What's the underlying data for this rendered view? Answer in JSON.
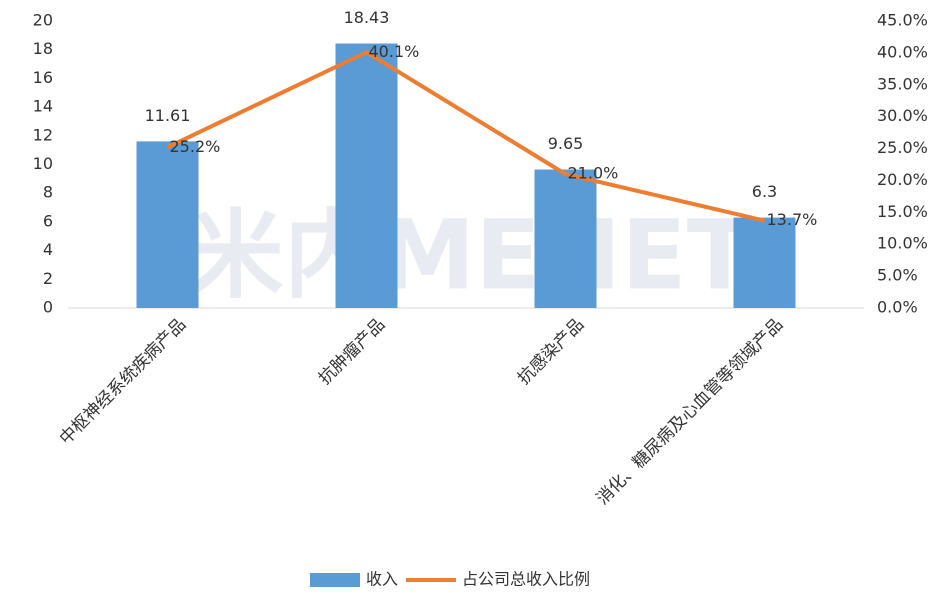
{
  "chart_data": {
    "type": "bar",
    "watermark": "米内MENET",
    "categories": [
      "中枢神经系统疾病产品",
      "抗肿瘤产品",
      "抗感染产品",
      "消化、糖尿病及心血管等领域产品"
    ],
    "series": [
      {
        "name": "收入",
        "type": "bar",
        "color": "#5b9bd5",
        "values": [
          11.61,
          18.43,
          9.65,
          6.3
        ]
      },
      {
        "name": "占公司总收入比例",
        "type": "line",
        "axis": "y2",
        "color": "#ed7d31",
        "values": [
          25.2,
          40.1,
          21.0,
          13.7
        ],
        "value_labels": [
          "25.2%",
          "40.1%",
          "21.0%",
          "13.7%"
        ]
      }
    ],
    "ylim": [
      0,
      20
    ],
    "yticks": [
      0,
      2,
      4,
      6,
      8,
      10,
      12,
      14,
      16,
      18,
      20
    ],
    "y2lim": [
      0,
      45
    ],
    "y2ticks": [
      {
        "value": 0,
        "label": "0.0%"
      },
      {
        "value": 5,
        "label": "5.0%"
      },
      {
        "value": 10,
        "label": "10.0%"
      },
      {
        "value": 15,
        "label": "15.0%"
      },
      {
        "value": 20,
        "label": "20.0%"
      },
      {
        "value": 25,
        "label": "25.0%"
      },
      {
        "value": 30,
        "label": "30.0%"
      },
      {
        "value": 35,
        "label": "35.0%"
      },
      {
        "value": 40,
        "label": "40.0%"
      },
      {
        "value": 45,
        "label": "45.0%"
      }
    ],
    "grid": false,
    "legend": "bottom"
  }
}
